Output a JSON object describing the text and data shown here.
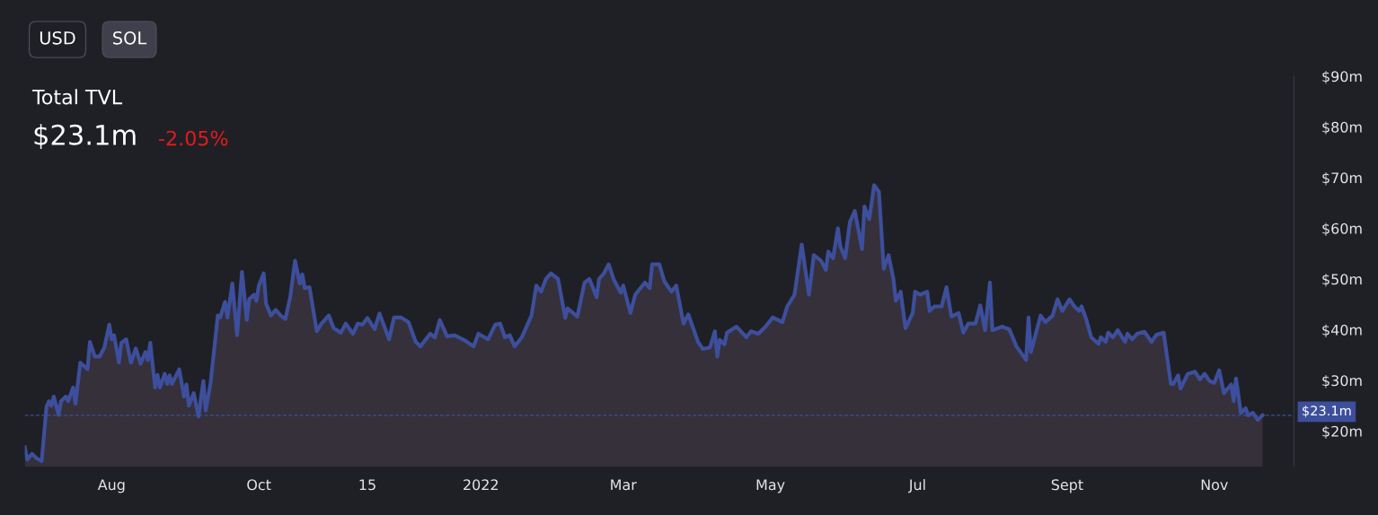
{
  "chart_data": {
    "type": "area",
    "title": "Total TVL",
    "subtitle": "$23.1m",
    "annotations": [
      "USD",
      "SOL",
      "-2.05%"
    ],
    "xlim": [
      "2021-06-26",
      "2022-12-04"
    ],
    "xticks": [
      {
        "value": "2021-08-01",
        "label": "Aug"
      },
      {
        "value": "2021-10-01",
        "label": "Oct"
      },
      {
        "value": "2021-11-15",
        "label": "15"
      },
      {
        "value": "2022-01-01",
        "label": "2022"
      },
      {
        "value": "2022-03-01",
        "label": "Mar"
      },
      {
        "value": "2022-05-01",
        "label": "May"
      },
      {
        "value": "2022-07-01",
        "label": "Jul"
      },
      {
        "value": "2022-09-01",
        "label": "Sept"
      },
      {
        "value": "2022-11-01",
        "label": "Nov"
      }
    ],
    "ylim": [
      13,
      90
    ],
    "yticks": [
      {
        "value": 20,
        "label": "$20m"
      },
      {
        "value": 30,
        "label": "$30m"
      },
      {
        "value": 40,
        "label": "$40m"
      },
      {
        "value": 50,
        "label": "$50m"
      },
      {
        "value": 60,
        "label": "$60m"
      },
      {
        "value": 70,
        "label": "$70m"
      },
      {
        "value": 80,
        "label": "$80m"
      },
      {
        "value": 90,
        "label": "$90m"
      }
    ],
    "grid": false,
    "ref_lines": [
      {
        "axis": "y",
        "value": 23.1,
        "label": "$23.1m",
        "color": "#3d4f9c",
        "line_style": "dashed"
      }
    ],
    "x": [
      "2021-06-26",
      "2021-06-27",
      "2021-06-29",
      "2021-07-01",
      "2021-07-03",
      "2021-07-05",
      "2021-07-06",
      "2021-07-07",
      "2021-07-08",
      "2021-07-10",
      "2021-07-11",
      "2021-07-13",
      "2021-07-14",
      "2021-07-16",
      "2021-07-17",
      "2021-07-19",
      "2021-07-22",
      "2021-07-23",
      "2021-07-25",
      "2021-07-27",
      "2021-07-29",
      "2021-07-31",
      "2021-08-01",
      "2021-08-02",
      "2021-08-04",
      "2021-08-05",
      "2021-08-07",
      "2021-08-09",
      "2021-08-11",
      "2021-08-13",
      "2021-08-15",
      "2021-08-16",
      "2021-08-17",
      "2021-08-19",
      "2021-08-20",
      "2021-08-21",
      "2021-08-23",
      "2021-08-24",
      "2021-08-25",
      "2021-08-26",
      "2021-08-29",
      "2021-08-31",
      "2021-09-01",
      "2021-09-02",
      "2021-09-04",
      "2021-09-06",
      "2021-09-08",
      "2021-09-09",
      "2021-09-11",
      "2021-09-14",
      "2021-09-15",
      "2021-09-17",
      "2021-09-18",
      "2021-09-20",
      "2021-09-22",
      "2021-09-24",
      "2021-09-26",
      "2021-09-27",
      "2021-09-29",
      "2021-09-30",
      "2021-10-01",
      "2021-10-03",
      "2021-10-04",
      "2021-10-06",
      "2021-10-08",
      "2021-10-10",
      "2021-10-12",
      "2021-10-14",
      "2021-10-16",
      "2021-10-18",
      "2021-10-19",
      "2021-10-20",
      "2021-10-22",
      "2021-10-25",
      "2021-10-27",
      "2021-10-30",
      "2021-11-01",
      "2021-11-04",
      "2021-11-06",
      "2021-11-09",
      "2021-11-11",
      "2021-11-13",
      "2021-11-15",
      "2021-11-18",
      "2021-11-20",
      "2021-11-24",
      "2021-11-26",
      "2021-11-29",
      "2021-12-02",
      "2021-12-05",
      "2021-12-07",
      "2021-12-11",
      "2021-12-13",
      "2021-12-15",
      "2021-12-18",
      "2021-12-21",
      "2021-12-25",
      "2021-12-29",
      "2021-12-31",
      "2022-01-04",
      "2022-01-07",
      "2022-01-09",
      "2022-01-11",
      "2022-01-13",
      "2022-01-15",
      "2022-01-18",
      "2022-01-22",
      "2022-01-24",
      "2022-01-26",
      "2022-01-28",
      "2022-01-30",
      "2022-02-02",
      "2022-02-05",
      "2022-02-06",
      "2022-02-10",
      "2022-02-13",
      "2022-02-15",
      "2022-02-18",
      "2022-02-19",
      "2022-02-21",
      "2022-02-23",
      "2022-02-25",
      "2022-02-28",
      "2022-03-01",
      "2022-03-04",
      "2022-03-06",
      "2022-03-10",
      "2022-03-12",
      "2022-03-13",
      "2022-03-16",
      "2022-03-18",
      "2022-03-21",
      "2022-03-23",
      "2022-03-26",
      "2022-03-28",
      "2022-03-30",
      "2022-04-01",
      "2022-04-03",
      "2022-04-06",
      "2022-04-08",
      "2022-04-09",
      "2022-04-10",
      "2022-04-12",
      "2022-04-13",
      "2022-04-17",
      "2022-04-21",
      "2022-04-23",
      "2022-04-26",
      "2022-04-29",
      "2022-05-02",
      "2022-05-06",
      "2022-05-08",
      "2022-05-11",
      "2022-05-14",
      "2022-05-17",
      "2022-05-19",
      "2022-05-22",
      "2022-05-24",
      "2022-05-25",
      "2022-05-27",
      "2022-05-29",
      "2022-05-30",
      "2022-06-01",
      "2022-06-03",
      "2022-06-05",
      "2022-06-06",
      "2022-06-08",
      "2022-06-09",
      "2022-06-11",
      "2022-06-13",
      "2022-06-15",
      "2022-06-17",
      "2022-06-19",
      "2022-06-21",
      "2022-06-22",
      "2022-06-24",
      "2022-06-26",
      "2022-06-29",
      "2022-06-30",
      "2022-07-02",
      "2022-07-05",
      "2022-07-06",
      "2022-07-08",
      "2022-07-11",
      "2022-07-13",
      "2022-07-15",
      "2022-07-18",
      "2022-07-20",
      "2022-07-22",
      "2022-07-25",
      "2022-07-27",
      "2022-07-29",
      "2022-07-31",
      "2022-08-01",
      "2022-08-05",
      "2022-08-08",
      "2022-08-11",
      "2022-08-15",
      "2022-08-16",
      "2022-08-17",
      "2022-08-19",
      "2022-08-21",
      "2022-08-23",
      "2022-08-26",
      "2022-08-28",
      "2022-08-30",
      "2022-09-02",
      "2022-09-04",
      "2022-09-06",
      "2022-09-07",
      "2022-09-09",
      "2022-09-11",
      "2022-09-14",
      "2022-09-15",
      "2022-09-17",
      "2022-09-18",
      "2022-09-20",
      "2022-09-22",
      "2022-09-25",
      "2022-09-26",
      "2022-09-28",
      "2022-09-30",
      "2022-10-03",
      "2022-10-06",
      "2022-10-08",
      "2022-10-11",
      "2022-10-14",
      "2022-10-15",
      "2022-10-17",
      "2022-10-18",
      "2022-10-21",
      "2022-10-24",
      "2022-10-26",
      "2022-10-28",
      "2022-10-30",
      "2022-11-01",
      "2022-11-03",
      "2022-11-05",
      "2022-11-08",
      "2022-11-09",
      "2022-11-10",
      "2022-11-12",
      "2022-11-14",
      "2022-11-15",
      "2022-11-17",
      "2022-11-19",
      "2022-11-21"
    ],
    "series": [
      {
        "color": "#3d4f9c",
        "values": [
          16.8,
          14.4,
          15.5,
          14.6,
          14.1,
          24.8,
          25.9,
          25.0,
          26.8,
          23.2,
          25.9,
          26.8,
          25.9,
          28.6,
          25.4,
          33.5,
          32.2,
          37.6,
          34.7,
          34.7,
          36.5,
          41.0,
          38.1,
          38.9,
          33.5,
          37.4,
          38.1,
          33.5,
          36.3,
          33.3,
          35.6,
          34.0,
          37.4,
          28.6,
          31.1,
          28.6,
          31.3,
          29.3,
          31.0,
          29.3,
          32.2,
          26.8,
          29.2,
          25.0,
          27.5,
          22.9,
          29.9,
          24.1,
          29.5,
          42.8,
          42.4,
          45.5,
          42.4,
          49.1,
          38.9,
          51.4,
          41.9,
          46.0,
          46.9,
          45.7,
          48.7,
          51.1,
          45.1,
          42.8,
          43.9,
          42.8,
          42.1,
          46.4,
          53.6,
          49.1,
          50.9,
          48.2,
          48.4,
          39.7,
          41.2,
          42.8,
          40.3,
          39.4,
          41.2,
          39.2,
          41.2,
          41.0,
          42.3,
          40.1,
          43.2,
          38.1,
          42.4,
          42.4,
          41.5,
          37.6,
          36.7,
          39.2,
          38.5,
          41.9,
          38.7,
          38.9,
          38.0,
          36.7,
          39.2,
          38.1,
          41.0,
          41.2,
          38.5,
          38.9,
          36.7,
          38.5,
          42.8,
          48.7,
          47.5,
          50.0,
          51.1,
          50.0,
          42.3,
          44.2,
          42.6,
          49.3,
          50.0,
          46.4,
          50.0,
          51.1,
          52.9,
          50.0,
          47.3,
          48.7,
          43.3,
          46.9,
          49.3,
          48.2,
          52.9,
          52.9,
          49.6,
          47.5,
          48.7,
          41.2,
          43.0,
          40.3,
          37.6,
          36.2,
          36.5,
          39.7,
          34.7,
          38.0,
          37.1,
          39.4,
          40.6,
          38.5,
          39.7,
          39.2,
          40.6,
          42.4,
          41.5,
          44.6,
          46.9,
          56.8,
          46.9,
          54.7,
          53.6,
          51.8,
          55.4,
          54.1,
          60.0,
          56.4,
          54.1,
          61.3,
          63.4,
          60.9,
          55.9,
          64.3,
          61.8,
          68.5,
          67.2,
          52.0,
          54.7,
          50.0,
          45.7,
          47.5,
          40.3,
          43.3,
          47.5,
          46.9,
          47.5,
          43.7,
          44.6,
          44.6,
          48.4,
          42.6,
          43.3,
          39.4,
          41.2,
          41.2,
          44.8,
          39.9,
          49.3,
          39.9,
          40.6,
          40.1,
          36.7,
          34.0,
          42.4,
          35.6,
          39.2,
          42.8,
          41.5,
          42.8,
          46.0,
          43.7,
          46.0,
          44.6,
          43.7,
          44.6,
          41.9,
          38.5,
          37.2,
          38.5,
          37.6,
          39.4,
          38.5,
          39.9,
          37.6,
          39.2,
          38.1,
          39.2,
          39.6,
          37.6,
          39.0,
          39.4,
          29.3,
          29.3,
          31.0,
          28.4,
          31.3,
          31.7,
          30.2,
          31.3,
          29.9,
          29.5,
          32.0,
          27.5,
          29.2,
          25.9,
          30.4,
          23.6,
          24.5,
          23.1,
          23.6,
          22.2,
          23.1
        ]
      }
    ]
  }
}
